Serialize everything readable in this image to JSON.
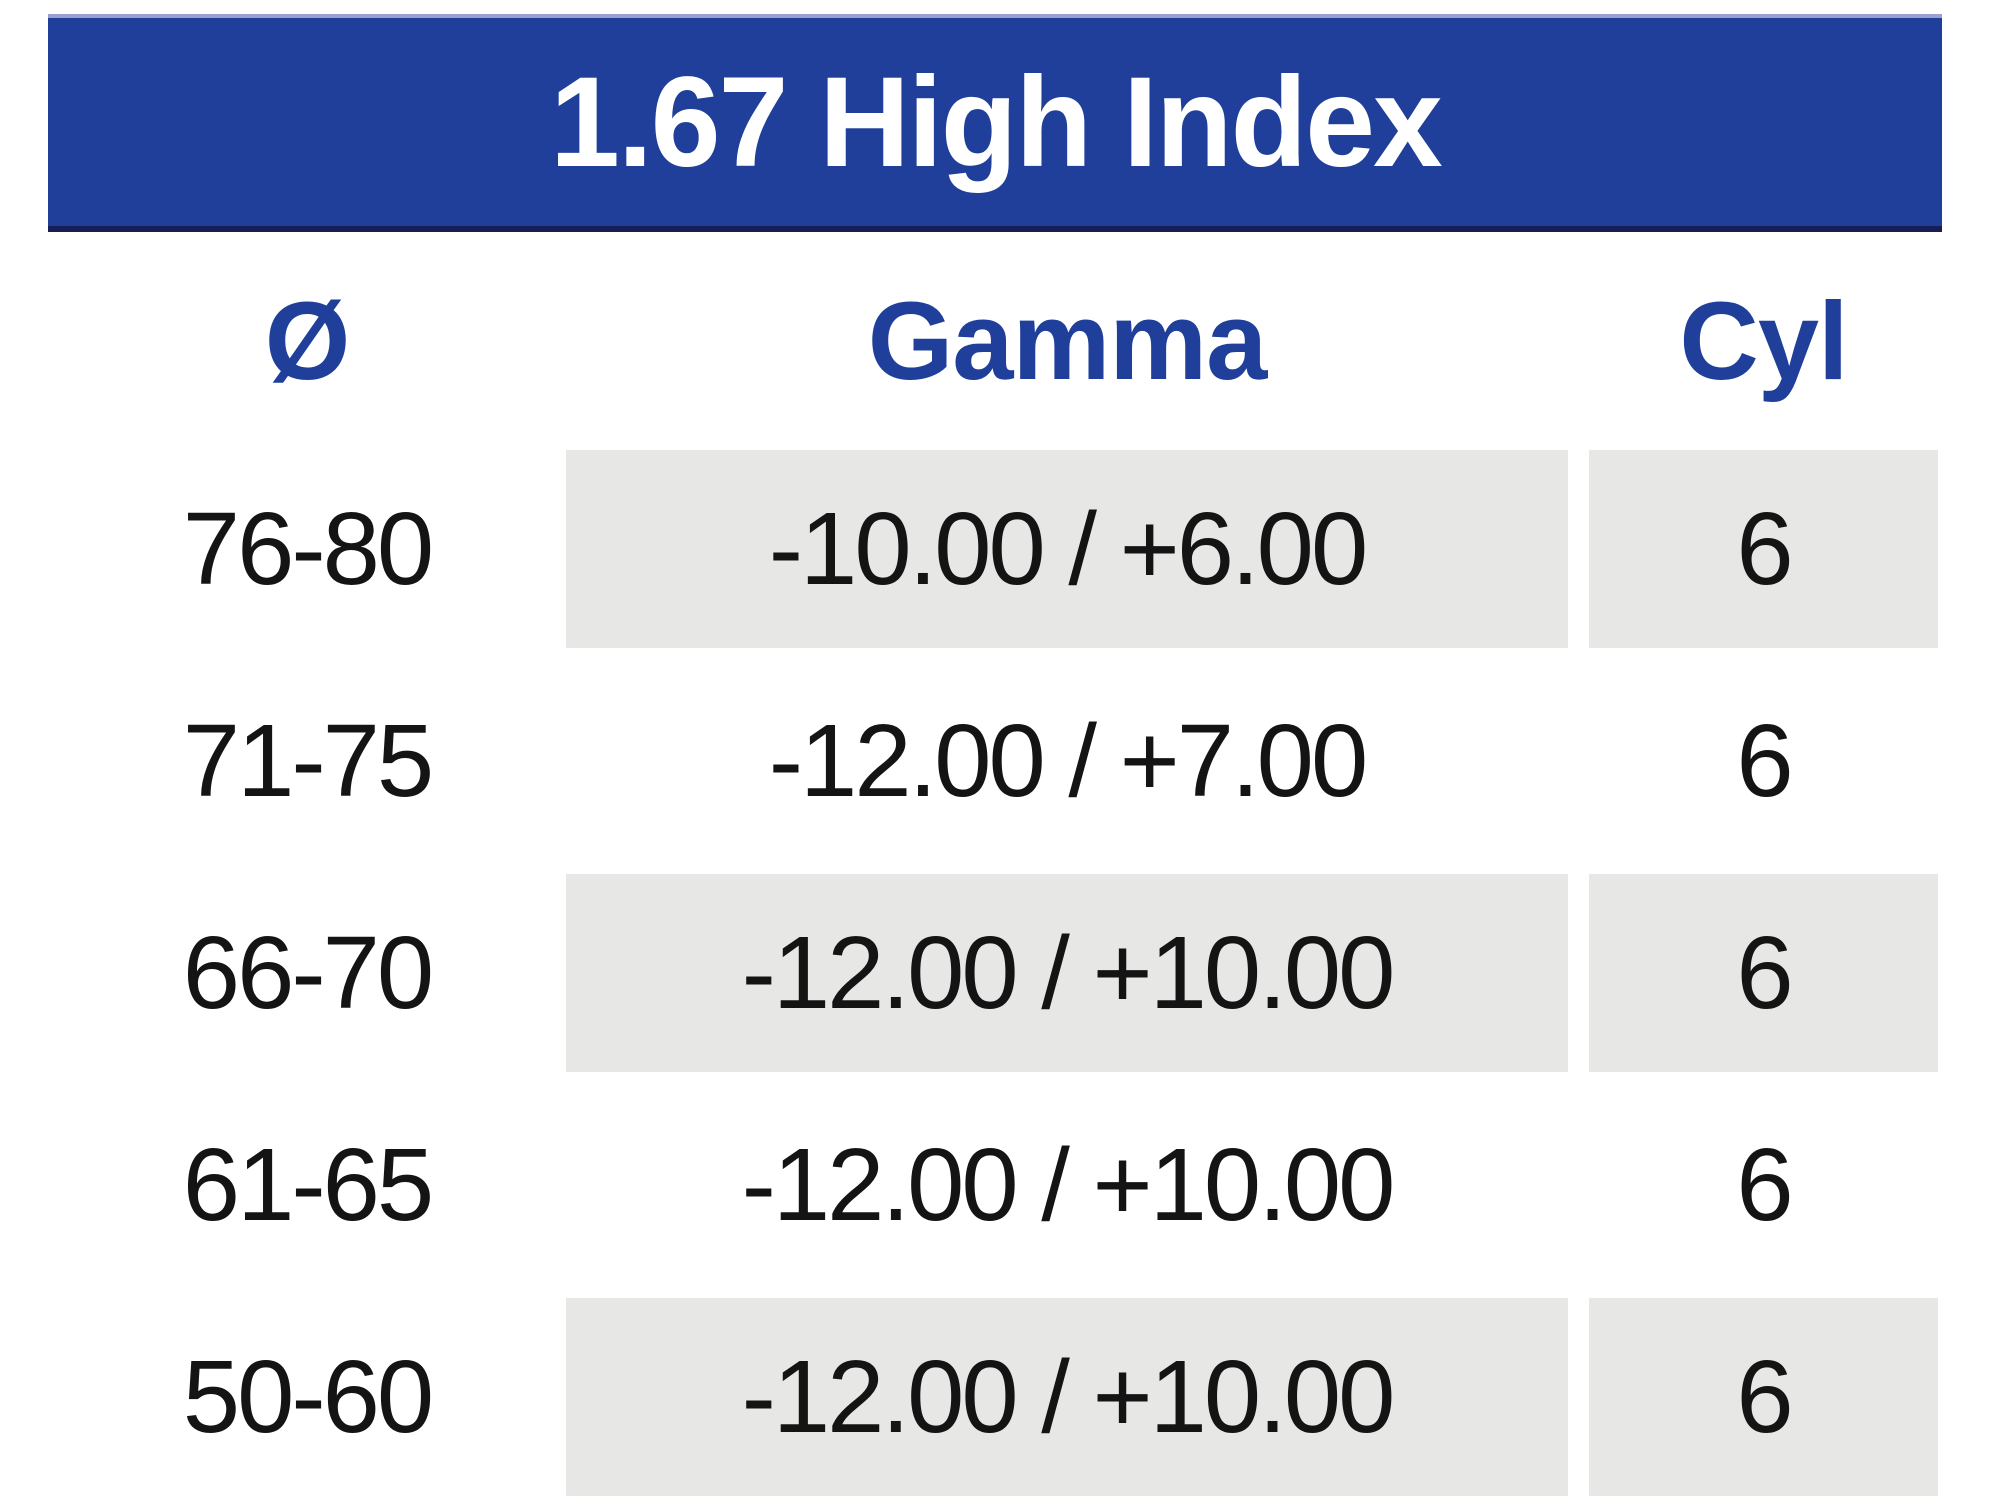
{
  "title": "1.67 High Index",
  "columns": {
    "diameter_label": "Ø",
    "gamma_label": "Gamma",
    "cyl_label": "Cyl"
  },
  "rows": [
    {
      "diameter": "76-80",
      "gamma": "-10.00 / +6.00",
      "cyl": "6"
    },
    {
      "diameter": "71-75",
      "gamma": "-12.00 / +7.00",
      "cyl": "6"
    },
    {
      "diameter": "66-70",
      "gamma": "-12.00 / +10.00",
      "cyl": "6"
    },
    {
      "diameter": "61-65",
      "gamma": "-12.00 / +10.00",
      "cyl": "6"
    },
    {
      "diameter": "50-60",
      "gamma": "-12.00 / +10.00",
      "cyl": "6"
    }
  ],
  "colors": {
    "accent_blue": "#1f3f9a",
    "banner_text": "#ffffff",
    "banner_top_edge": "#9aa0d0",
    "banner_bottom_edge": "#161e55",
    "row_shade": "#e7e7e6",
    "data_text": "#141414",
    "page_bg": "#ffffff"
  },
  "chart_data": {
    "type": "table",
    "title": "1.67 High Index",
    "columns": [
      "Ø",
      "Gamma",
      "Cyl"
    ],
    "rows": [
      [
        "76-80",
        "-10.00 / +6.00",
        "6"
      ],
      [
        "71-75",
        "-12.00 / +7.00",
        "6"
      ],
      [
        "66-70",
        "-12.00 / +10.00",
        "6"
      ],
      [
        "61-65",
        "-12.00 / +10.00",
        "6"
      ],
      [
        "50-60",
        "-12.00 / +10.00",
        "6"
      ]
    ]
  }
}
